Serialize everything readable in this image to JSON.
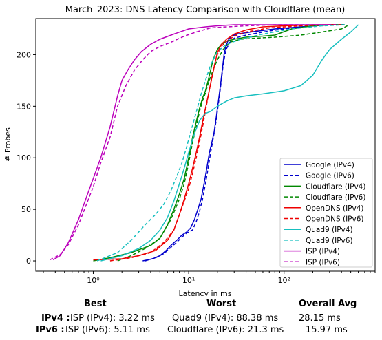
{
  "chart_data": {
    "type": "line",
    "title": "March_2023: DNS Latency Comparison with Cloudflare (mean)",
    "xlabel": "Latency in ms",
    "ylabel": "# Probes",
    "xscale": "log",
    "xlim": [
      0.25,
      900
    ],
    "ylim": [
      -10,
      235
    ],
    "xticks": [
      1,
      10,
      100
    ],
    "xtick_labels": [
      "10⁰",
      "10¹",
      "10²"
    ],
    "yticks": [
      0,
      50,
      100,
      150,
      200
    ],
    "grid": false,
    "legend_position": "lower-right",
    "series": [
      {
        "name": "Google (IPv4)",
        "color": "#0000cc",
        "dash": "solid",
        "x": [
          3.3,
          4.2,
          5.0,
          5.8,
          6.5,
          7.5,
          8.5,
          9.5,
          10.5,
          11.5,
          12.5,
          13.5,
          14.5,
          15.5,
          16.5,
          17.5,
          18.5,
          19.5,
          20.5,
          21.5,
          22.5,
          23.5,
          24.5,
          26,
          28,
          32,
          45,
          80,
          150,
          300,
          420
        ],
        "y": [
          0,
          2,
          5,
          10,
          15,
          20,
          25,
          28,
          32,
          40,
          50,
          60,
          75,
          90,
          105,
          115,
          125,
          140,
          155,
          170,
          185,
          200,
          208,
          214,
          218,
          220,
          222,
          225,
          227,
          229,
          229
        ]
      },
      {
        "name": "Google (IPv6)",
        "color": "#0000cc",
        "dash": "dashed",
        "x": [
          3.5,
          4.5,
          5.5,
          6.5,
          7.5,
          8.5,
          9.5,
          11,
          12,
          13,
          14,
          15,
          16,
          17,
          18,
          19,
          20,
          21,
          22,
          23,
          24,
          25,
          27,
          30,
          40,
          70,
          150,
          300,
          430
        ],
        "y": [
          0,
          3,
          7,
          13,
          18,
          23,
          27,
          30,
          38,
          48,
          60,
          75,
          90,
          105,
          118,
          130,
          145,
          160,
          175,
          190,
          200,
          206,
          212,
          216,
          219,
          223,
          227,
          229,
          229
        ]
      },
      {
        "name": "Cloudflare (IPv4)",
        "color": "#008800",
        "dash": "solid",
        "x": [
          1.0,
          1.5,
          2.5,
          4.0,
          5.0,
          6.0,
          7.0,
          8.0,
          9.0,
          10.0,
          11.0,
          12.0,
          13.0,
          14.0,
          15.0,
          16.0,
          17.0,
          18.0,
          20.0,
          22.0,
          25.0,
          30.0,
          40.0,
          60.0,
          80.0,
          120,
          200,
          300,
          430
        ],
        "y": [
          0,
          3,
          8,
          15,
          22,
          35,
          50,
          65,
          80,
          100,
          120,
          135,
          148,
          158,
          165,
          175,
          185,
          195,
          205,
          210,
          213,
          215,
          217,
          218,
          219,
          225,
          228,
          229,
          229
        ]
      },
      {
        "name": "Cloudflare (IPv6)",
        "color": "#008800",
        "dash": "dashed",
        "x": [
          1.8,
          2.5,
          3.5,
          5.0,
          6.5,
          8.0,
          9.0,
          10.0,
          11.0,
          12.0,
          13.0,
          14.0,
          15.0,
          16.0,
          18.0,
          20.0,
          23.0,
          27.0,
          35.0,
          50.0,
          80.0,
          150,
          250,
          400,
          480
        ],
        "y": [
          0,
          5,
          12,
          22,
          40,
          60,
          75,
          95,
          115,
          130,
          145,
          155,
          163,
          172,
          185,
          195,
          205,
          212,
          215,
          216,
          217,
          219,
          222,
          225,
          229
        ]
      },
      {
        "name": "OpenDNS (IPv4)",
        "color": "#ee0000",
        "dash": "solid",
        "x": [
          1.0,
          2.0,
          3.0,
          4.5,
          6.0,
          7.0,
          8.0,
          9.0,
          10.0,
          11.0,
          12.0,
          13.0,
          14.0,
          15.0,
          16.0,
          17.0,
          18.0,
          19.0,
          20.0,
          22.0,
          25.0,
          30.0,
          40.0,
          60.0,
          100,
          200,
          350
        ],
        "y": [
          1,
          2,
          5,
          10,
          20,
          30,
          45,
          60,
          75,
          90,
          105,
          120,
          135,
          148,
          160,
          172,
          183,
          193,
          202,
          210,
          215,
          220,
          224,
          227,
          228,
          229,
          229
        ]
      },
      {
        "name": "OpenDNS (IPv6)",
        "color": "#ee0000",
        "dash": "dashed",
        "x": [
          1.5,
          2.5,
          4.0,
          5.5,
          7.0,
          8.0,
          9.0,
          10.0,
          11.0,
          12.0,
          13.0,
          14.0,
          15.0,
          16.0,
          17.0,
          18.0,
          19.0,
          20.0,
          22.0,
          25.0,
          30.0,
          40.0,
          70.0,
          150,
          300,
          400
        ],
        "y": [
          0,
          3,
          8,
          18,
          30,
          45,
          58,
          70,
          85,
          100,
          115,
          130,
          145,
          160,
          172,
          183,
          193,
          200,
          208,
          213,
          218,
          222,
          226,
          228,
          229,
          229
        ]
      },
      {
        "name": "Quad9 (IPv4)",
        "color": "#17bfbf",
        "dash": "solid",
        "x": [
          1.2,
          2.0,
          3.0,
          4.0,
          5.0,
          6.0,
          7.0,
          8.0,
          9.0,
          10.0,
          11.0,
          12.0,
          13.0,
          14.0,
          15.0,
          17.0,
          20.0,
          25.0,
          30.0,
          40.0,
          60.0,
          100.0,
          150.0,
          200.0,
          250.0,
          300.0,
          400.0,
          500.0,
          600.0
        ],
        "y": [
          0,
          5,
          12,
          20,
          30,
          42,
          58,
          75,
          90,
          105,
          118,
          128,
          136,
          140,
          143,
          145,
          150,
          155,
          158,
          160,
          162,
          165,
          170,
          180,
          195,
          205,
          215,
          222,
          229
        ]
      },
      {
        "name": "Quad9 (IPv6)",
        "color": "#17bfbf",
        "dash": "dashed",
        "x": [
          1.1,
          1.8,
          2.5,
          3.5,
          4.5,
          5.5,
          6.5,
          7.5,
          8.5,
          9.5,
          10.5,
          11.5,
          12.5,
          13.5,
          15.0,
          17.0,
          20.0,
          25.0,
          35.0,
          60.0,
          120,
          250,
          450
        ],
        "y": [
          0,
          8,
          20,
          35,
          45,
          55,
          68,
          82,
          95,
          110,
          125,
          138,
          150,
          162,
          175,
          190,
          203,
          210,
          215,
          220,
          225,
          228,
          229
        ]
      },
      {
        "name": "ISP (IPv4)",
        "color": "#bb00bb",
        "dash": "solid",
        "x": [
          0.38,
          0.45,
          0.55,
          0.7,
          0.85,
          1.0,
          1.2,
          1.5,
          1.8,
          2.0,
          2.3,
          2.7,
          3.2,
          4.0,
          5.0,
          7.0,
          10.0,
          15.0,
          20.0,
          30.0,
          50.0,
          100.0,
          200.0,
          300.0
        ],
        "y": [
          1,
          5,
          18,
          40,
          62,
          80,
          100,
          130,
          160,
          175,
          185,
          195,
          203,
          210,
          215,
          220,
          225,
          227,
          228,
          229,
          229,
          229,
          229,
          229
        ]
      },
      {
        "name": "ISP (IPv6)",
        "color": "#bb00bb",
        "dash": "dashed",
        "x": [
          0.35,
          0.45,
          0.55,
          0.7,
          0.85,
          1.0,
          1.2,
          1.5,
          1.8,
          2.2,
          2.7,
          3.3,
          4.0,
          5.0,
          6.5,
          9.0,
          12.0,
          17.0,
          25.0,
          40.0,
          80.0,
          200.0,
          350.0
        ],
        "y": [
          1,
          6,
          16,
          35,
          55,
          72,
          95,
          120,
          150,
          170,
          185,
          195,
          203,
          208,
          212,
          218,
          222,
          226,
          227,
          228,
          229,
          229,
          229
        ]
      }
    ]
  },
  "summary": {
    "headers": [
      "Best",
      "Worst",
      "Overall Avg"
    ],
    "rows": [
      {
        "label": "IPv4 :",
        "best": "ISP (IPv4): 3.22 ms",
        "worst": "Quad9 (IPv4): 88.38 ms",
        "avg": "28.15 ms"
      },
      {
        "label": "IPv6 :",
        "best": "ISP (IPv6): 5.11 ms",
        "worst": "Cloudflare (IPv6): 21.3 ms",
        "avg": "15.97 ms"
      }
    ]
  }
}
